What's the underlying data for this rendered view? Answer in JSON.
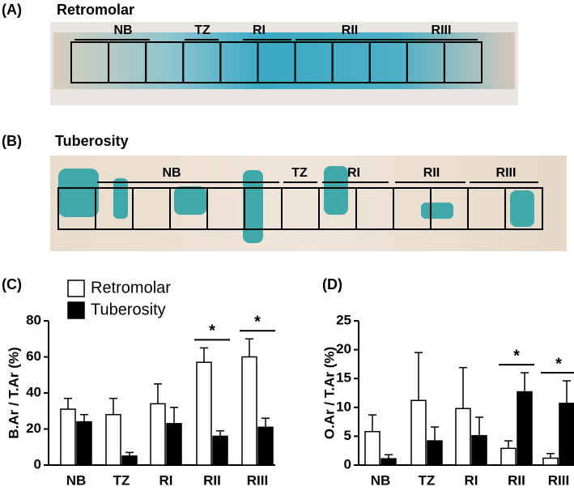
{
  "panels": [
    {
      "label": "(A)",
      "title": "Retromolar",
      "regions": [
        "NB",
        "TZ",
        "RI",
        "RII",
        "RIII"
      ]
    },
    {
      "label": "(B)",
      "title": "Tuberosity",
      "regions": [
        "NB",
        "TZ",
        "RI",
        "RII",
        "RIII"
      ]
    }
  ],
  "chart_data": [
    {
      "type": "bar",
      "panel_label": "(C)",
      "ylabel": "B.Ar / T.Ar (%)",
      "categories": [
        "NB",
        "TZ",
        "RI",
        "RII",
        "RIII"
      ],
      "series": [
        {
          "name": "Retromolar",
          "color": "#ffffff",
          "values": [
            31,
            28,
            34,
            57,
            60
          ],
          "errors": [
            6,
            9,
            11,
            8,
            10
          ]
        },
        {
          "name": "Tuberosity",
          "color": "#000000",
          "values": [
            24,
            5,
            23,
            16,
            21
          ],
          "errors": [
            4,
            2,
            9,
            3,
            5
          ]
        }
      ],
      "ylim": [
        0,
        80
      ],
      "yticks": [
        0,
        20,
        40,
        60,
        80
      ],
      "significance": [
        {
          "label": "*",
          "category": "RII"
        },
        {
          "label": "*",
          "category": "RIII"
        }
      ]
    },
    {
      "type": "bar",
      "panel_label": "(D)",
      "ylabel": "O.Ar / T.Ar (%)",
      "categories": [
        "NB",
        "TZ",
        "RI",
        "RII",
        "RIII"
      ],
      "series": [
        {
          "name": "Retromolar",
          "color": "#ffffff",
          "values": [
            5.8,
            11.2,
            9.8,
            2.9,
            1.2
          ],
          "errors": [
            2.9,
            8.3,
            7.1,
            1.3,
            0.8
          ]
        },
        {
          "name": "Tuberosity",
          "color": "#000000",
          "values": [
            1.1,
            4.2,
            5.1,
            12.7,
            10.7
          ],
          "errors": [
            0.7,
            2.4,
            3.2,
            3.3,
            3.9
          ]
        }
      ],
      "ylim": [
        0,
        25
      ],
      "yticks": [
        0,
        5,
        10,
        15,
        20,
        25
      ],
      "significance": [
        {
          "label": "*",
          "category": "RII"
        },
        {
          "label": "*",
          "category": "RIII"
        }
      ]
    }
  ]
}
